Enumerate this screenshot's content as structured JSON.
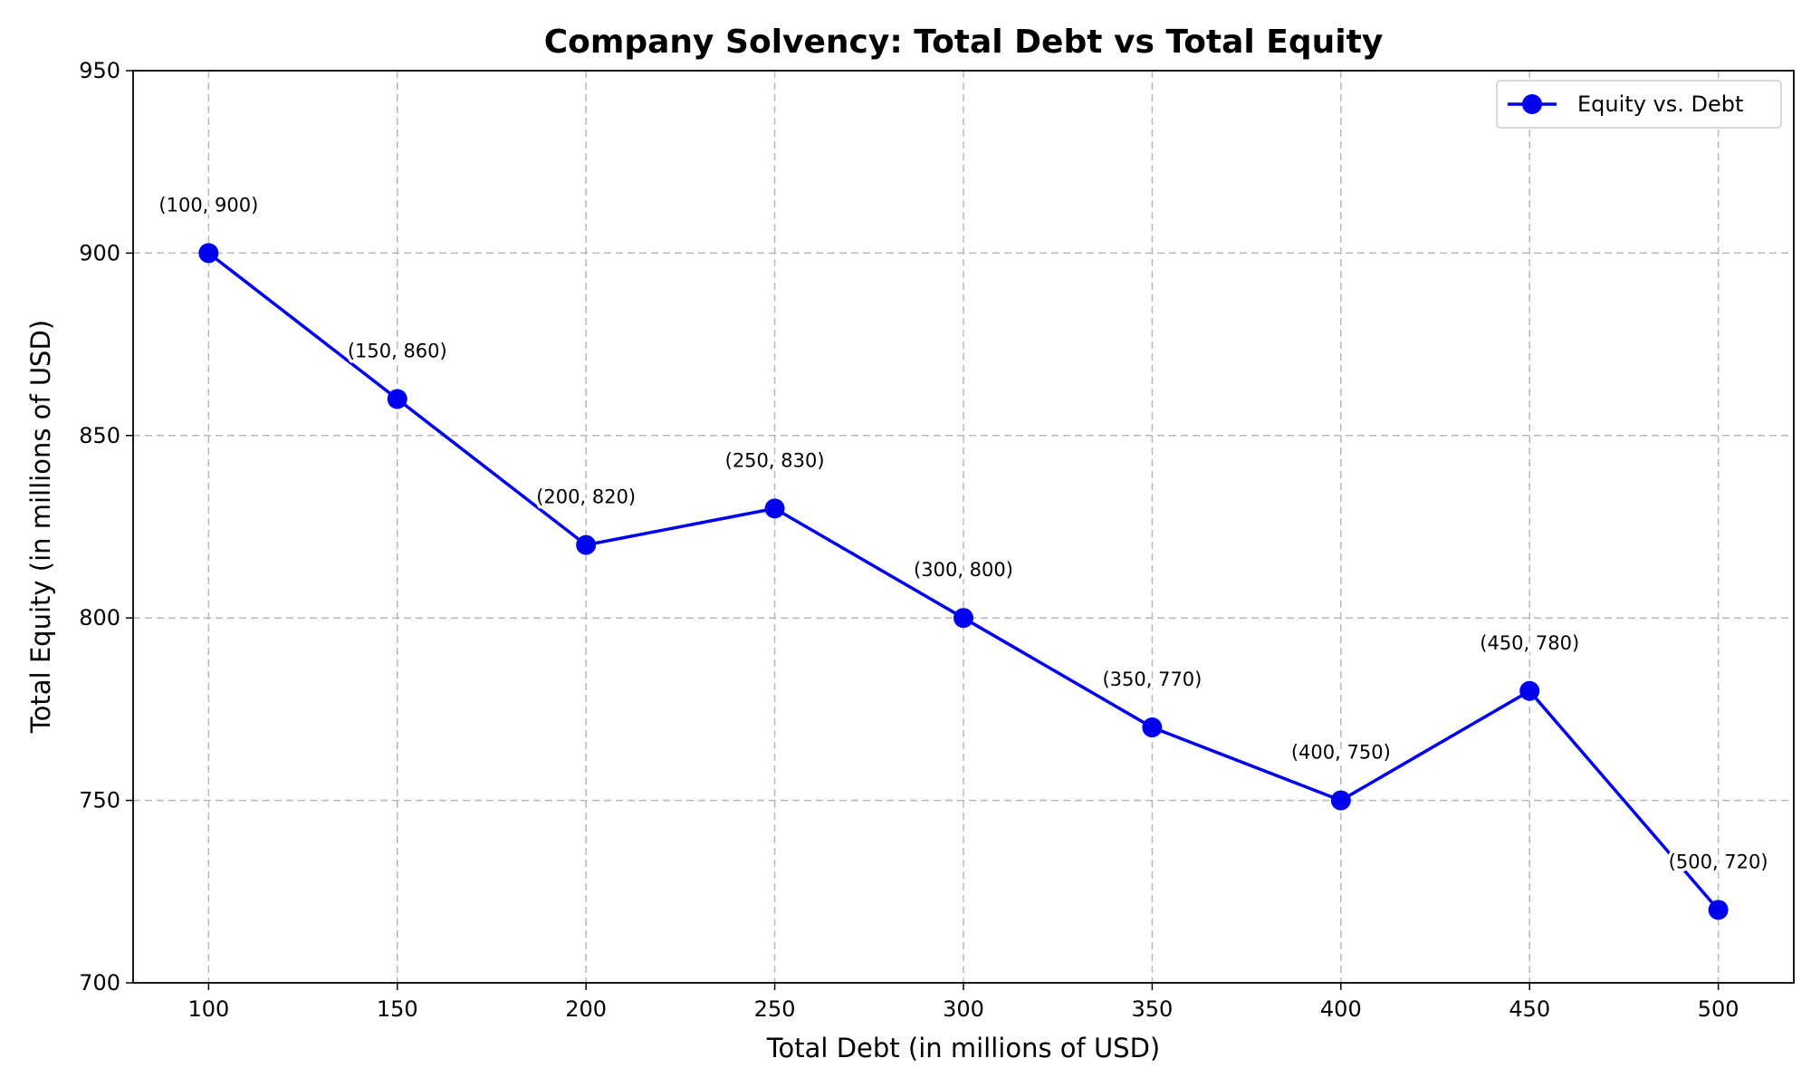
{
  "chart_data": {
    "type": "line",
    "title": "Company Solvency: Total Debt vs Total Equity",
    "xlabel": "Total Debt (in millions of USD)",
    "ylabel": "Total Equity (in millions of USD)",
    "xlim": [
      80,
      520
    ],
    "ylim": [
      700,
      950
    ],
    "x_ticks": [
      100,
      150,
      200,
      250,
      300,
      350,
      400,
      450,
      500
    ],
    "y_ticks": [
      700,
      750,
      800,
      850,
      900,
      950
    ],
    "grid": true,
    "legend_position": "top-right",
    "series": [
      {
        "name": "Equity vs. Debt",
        "color": "#0000ee",
        "marker": "circle",
        "x": [
          100,
          150,
          200,
          250,
          300,
          350,
          400,
          450,
          500
        ],
        "y": [
          900,
          860,
          820,
          830,
          800,
          770,
          750,
          780,
          720
        ],
        "point_labels": [
          "(100, 900)",
          "(150, 860)",
          "(200, 820)",
          "(250, 830)",
          "(300, 800)",
          "(350, 770)",
          "(400, 750)",
          "(450, 780)",
          "(500, 720)"
        ]
      }
    ]
  }
}
